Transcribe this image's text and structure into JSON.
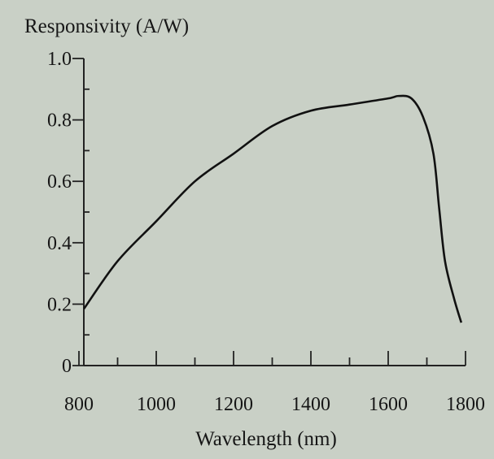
{
  "chart_data": {
    "type": "line",
    "title": "",
    "ylabel": "Responsivity (A/W)",
    "xlabel": "Wavelength (nm)",
    "xlim": [
      800,
      1800
    ],
    "ylim": [
      0,
      1.0
    ],
    "x_ticks": [
      "800",
      "1000",
      "1200",
      "1400",
      "1600",
      "1800"
    ],
    "y_ticks": [
      "0",
      "0.2",
      "0.4",
      "0.6",
      "0.8",
      "1.0"
    ],
    "grid": false,
    "series": [
      {
        "x": [
          813,
          900,
          1000,
          1100,
          1200,
          1300,
          1400,
          1500,
          1600,
          1627,
          1660,
          1690,
          1717,
          1732,
          1747,
          1770,
          1789
        ],
        "y": [
          0.185,
          0.34,
          0.47,
          0.6,
          0.69,
          0.78,
          0.83,
          0.85,
          0.87,
          0.878,
          0.87,
          0.81,
          0.69,
          0.51,
          0.34,
          0.22,
          0.14
        ]
      }
    ],
    "colors": {
      "line": "#111111",
      "background": "#c9d0c6"
    }
  }
}
